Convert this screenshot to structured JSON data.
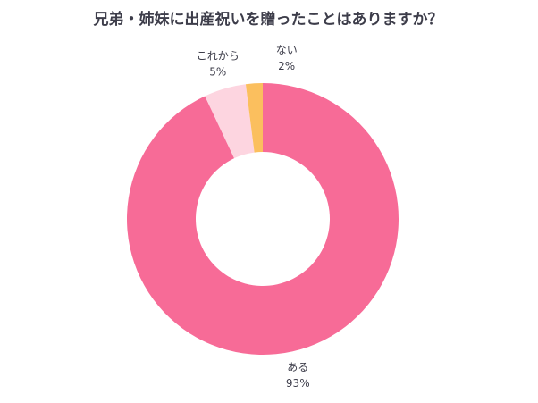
{
  "chart_data": {
    "type": "donut",
    "title": "兄弟・姉妹に出産祝いを贈ったことはありますか？",
    "categories": [
      "ある",
      "これから",
      "ない"
    ],
    "values": [
      93,
      5,
      2
    ],
    "value_labels": [
      "93%",
      "5%",
      "2%"
    ],
    "colors": [
      "#f76b97",
      "#fdd5e0",
      "#fbbf5e"
    ]
  }
}
